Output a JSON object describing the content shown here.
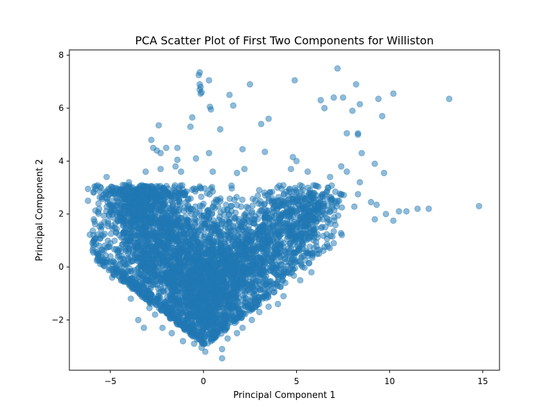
{
  "chart_data": {
    "type": "scatter",
    "title": "PCA Scatter Plot of First Two Components for Williston",
    "xlabel": "Principal Component 1",
    "ylabel": "Principal Component 2",
    "xlim": [
      -7.2,
      15.9
    ],
    "ylim": [
      -3.9,
      8.2
    ],
    "xticks": [
      -5,
      0,
      5,
      10,
      15
    ],
    "yticks": [
      -2,
      0,
      2,
      4,
      6,
      8
    ],
    "xtick_labels": [
      "−5",
      "0",
      "5",
      "10",
      "15"
    ],
    "ytick_labels": [
      "−2",
      "0",
      "2",
      "4",
      "6",
      "8"
    ],
    "grid": false,
    "legend": "none",
    "color": "#1f77b4",
    "alpha": 0.5,
    "series": [
      {
        "points": [
          [
            -6.2,
            2.95
          ],
          [
            -6.2,
            2.5
          ],
          [
            -6.1,
            1.22
          ],
          [
            -5.9,
            1.2
          ],
          [
            -5.8,
            2.95
          ],
          [
            -5.6,
            2.2
          ],
          [
            -5.5,
            1.6
          ],
          [
            -5.4,
            0.25
          ],
          [
            -5.3,
            0.8
          ],
          [
            -5.2,
            3.4
          ],
          [
            -5.1,
            2.95
          ],
          [
            -5.0,
            2.1
          ],
          [
            -4.9,
            -0.4
          ],
          [
            -4.6,
            1.8
          ],
          [
            -4.4,
            2.3
          ],
          [
            -4.2,
            -0.25
          ],
          [
            -3.9,
            -1.2
          ],
          [
            -3.5,
            -2.0
          ],
          [
            -3.2,
            -2.3
          ],
          [
            -3.1,
            0.4
          ],
          [
            -2.9,
            -1.55
          ],
          [
            -2.8,
            4.8
          ],
          [
            -2.7,
            4.5
          ],
          [
            -2.5,
            4.4
          ],
          [
            -2.4,
            5.35
          ],
          [
            -2.3,
            4.3
          ],
          [
            -2.0,
            4.5
          ],
          [
            -1.4,
            4.5
          ],
          [
            -1.4,
            4.05
          ],
          [
            -1.2,
            3.6
          ],
          [
            -0.7,
            5.3
          ],
          [
            -0.6,
            5.65
          ],
          [
            -0.4,
            4.1
          ],
          [
            -0.2,
            7.35
          ],
          [
            -0.25,
            7.25
          ],
          [
            -0.2,
            6.9
          ],
          [
            -0.15,
            6.8
          ],
          [
            -0.2,
            6.7
          ],
          [
            -0.1,
            6.6
          ],
          [
            -0.15,
            6.55
          ],
          [
            0.3,
            7.05
          ],
          [
            0.35,
            6.05
          ],
          [
            0.4,
            5.95
          ],
          [
            0.3,
            4.3
          ],
          [
            0.9,
            5.2
          ],
          [
            1.4,
            6.5
          ],
          [
            1.6,
            6.1
          ],
          [
            2.1,
            4.45
          ],
          [
            2.5,
            6.9
          ],
          [
            3.1,
            5.4
          ],
          [
            3.5,
            5.6
          ],
          [
            3.3,
            4.35
          ],
          [
            4.8,
            4.15
          ],
          [
            4.9,
            7.05
          ],
          [
            6.3,
            6.3
          ],
          [
            6.5,
            6.0
          ],
          [
            7.0,
            6.4
          ],
          [
            7.2,
            7.5
          ],
          [
            7.5,
            6.4
          ],
          [
            7.7,
            5.05
          ],
          [
            8.0,
            5.9
          ],
          [
            8.2,
            6.9
          ],
          [
            8.3,
            5.05
          ],
          [
            8.3,
            5.0
          ],
          [
            8.4,
            6.15
          ],
          [
            8.5,
            4.3
          ],
          [
            9.4,
            6.35
          ],
          [
            9.6,
            5.7
          ],
          [
            10.2,
            6.55
          ],
          [
            9.2,
            3.9
          ],
          [
            9.7,
            3.55
          ],
          [
            9.0,
            2.45
          ],
          [
            9.3,
            2.35
          ],
          [
            9.2,
            1.8
          ],
          [
            9.8,
            2.0
          ],
          [
            10.2,
            1.75
          ],
          [
            10.5,
            2.1
          ],
          [
            10.9,
            2.1
          ],
          [
            11.5,
            2.2
          ],
          [
            12.1,
            2.2
          ],
          [
            13.2,
            6.35
          ],
          [
            14.8,
            2.3
          ],
          [
            8.3,
            2.75
          ],
          [
            8.4,
            3.2
          ],
          [
            7.7,
            3.6
          ],
          [
            7.4,
            3.8
          ],
          [
            6.8,
            3.4
          ],
          [
            7.2,
            2.5
          ],
          [
            7.0,
            0.9
          ],
          [
            6.2,
            0.5
          ],
          [
            5.8,
            -0.2
          ],
          [
            5.2,
            -0.5
          ],
          [
            4.4,
            -0.6
          ],
          [
            4.3,
            -1.1
          ],
          [
            4.0,
            -1.4
          ],
          [
            3.5,
            -1.5
          ],
          [
            3.0,
            -1.7
          ],
          [
            2.6,
            -2.0
          ],
          [
            2.1,
            -2.3
          ],
          [
            1.8,
            -2.5
          ],
          [
            1.3,
            -2.7
          ],
          [
            1.0,
            -3.1
          ],
          [
            1.0,
            -3.45
          ],
          [
            0.1,
            -3.2
          ],
          [
            -0.1,
            -3.05
          ],
          [
            -0.5,
            -2.9
          ],
          [
            -1.1,
            -2.8
          ],
          [
            -1.7,
            -2.5
          ],
          [
            -2.2,
            -2.3
          ],
          [
            -0.5,
            -2.6
          ],
          [
            0.4,
            -2.8
          ],
          [
            5.6,
            3.6
          ],
          [
            4.7,
            3.7
          ],
          [
            5.0,
            4.0
          ],
          [
            2.2,
            3.7
          ],
          [
            1.8,
            3.55
          ],
          [
            0.5,
            3.6
          ],
          [
            -1.5,
            3.8
          ],
          [
            -2.3,
            3.7
          ],
          [
            -3.1,
            3.6
          ],
          [
            -4.0,
            3.2
          ],
          [
            -5.3,
            1.25
          ],
          [
            -5.7,
            0.3
          ],
          [
            -4.5,
            0.1
          ],
          [
            -2.6,
            -1.8
          ]
        ]
      }
    ],
    "dense_clusters": [
      {
        "cx": -3.1,
        "cy": 1.0,
        "sx": 1.4,
        "sy": 1.6,
        "n": 900
      },
      {
        "cx": -1.5,
        "cy": 0.2,
        "sx": 1.2,
        "sy": 1.4,
        "n": 850
      },
      {
        "cx": 0.0,
        "cy": -1.2,
        "sx": 0.9,
        "sy": 1.1,
        "n": 750
      },
      {
        "cx": 1.3,
        "cy": -0.3,
        "sx": 1.1,
        "sy": 1.1,
        "n": 650
      },
      {
        "cx": 2.8,
        "cy": 0.6,
        "sx": 1.1,
        "sy": 1.0,
        "n": 500
      },
      {
        "cx": 4.7,
        "cy": 1.4,
        "sx": 0.9,
        "sy": 0.8,
        "n": 350
      },
      {
        "cx": -3.6,
        "cy": 2.3,
        "sx": 0.8,
        "sy": 0.5,
        "n": 350
      },
      {
        "cx": 6.0,
        "cy": 2.3,
        "sx": 0.8,
        "sy": 0.6,
        "n": 180
      }
    ]
  }
}
